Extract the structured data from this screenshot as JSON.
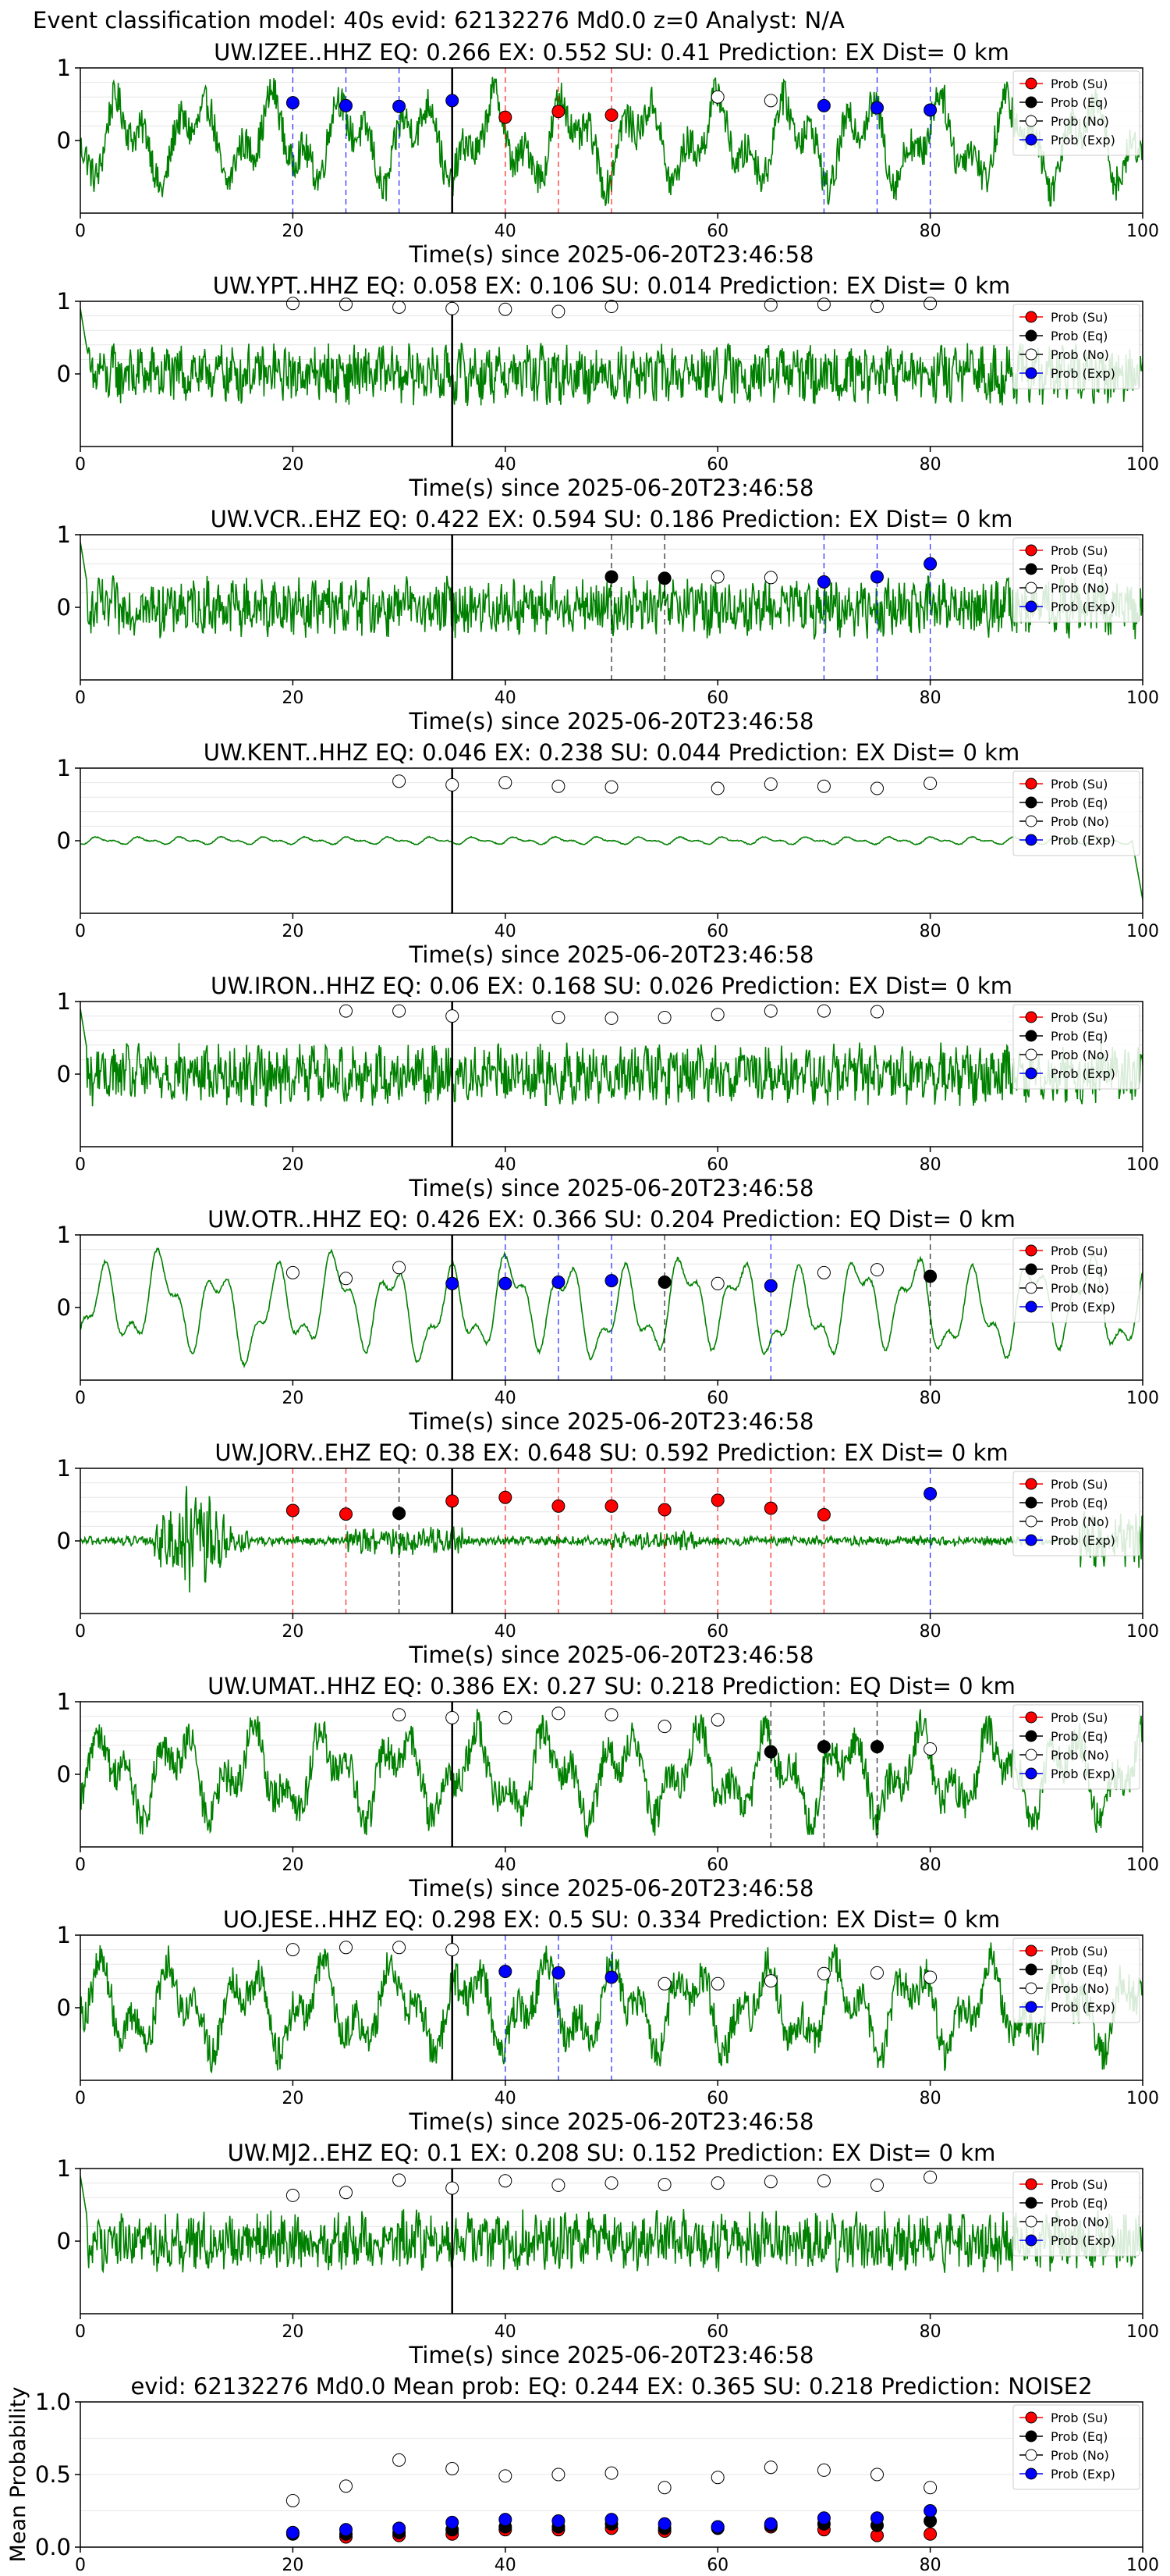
{
  "figure_title": "Event classification model: 40s evid: 62132276 Md0.0 z=0 Analyst: N/A",
  "colors": {
    "waveform": "#008000",
    "su": "#ff0000",
    "eq": "#000000",
    "no": "#ffffff",
    "exp": "#0000ff",
    "pick_line": "#000000"
  },
  "legend_entries": [
    "Prob (Su)",
    "Prob (Eq)",
    "Prob (No)",
    "Prob (Exp)"
  ],
  "chart_data": [
    {
      "type": "line",
      "title": "UW.IZEE..HHZ   EQ: 0.266  EX: 0.552  SU: 0.41   Prediction: EX    Dist= 0 km",
      "xlabel": "Time(s) since 2025-06-20T23:46:58",
      "xlim": [
        0,
        100
      ],
      "ylim": [
        -1,
        1
      ],
      "xticks": [
        0,
        20,
        40,
        60,
        80,
        100
      ],
      "yticks": [
        1,
        0
      ],
      "pick_time": 35,
      "waveform_style": "mixed",
      "legend": "top-right",
      "grid": "y",
      "points": [
        {
          "t": 20,
          "p": 0.52,
          "c": "exp"
        },
        {
          "t": 25,
          "p": 0.48,
          "c": "exp"
        },
        {
          "t": 30,
          "p": 0.47,
          "c": "exp"
        },
        {
          "t": 35,
          "p": 0.55,
          "c": "exp"
        },
        {
          "t": 40,
          "p": 0.32,
          "c": "su"
        },
        {
          "t": 45,
          "p": 0.4,
          "c": "su"
        },
        {
          "t": 50,
          "p": 0.35,
          "c": "su"
        },
        {
          "t": 60,
          "p": 0.6,
          "c": "no"
        },
        {
          "t": 65,
          "p": 0.55,
          "c": "no"
        },
        {
          "t": 70,
          "p": 0.48,
          "c": "exp"
        },
        {
          "t": 75,
          "p": 0.45,
          "c": "exp"
        },
        {
          "t": 80,
          "p": 0.42,
          "c": "exp"
        }
      ]
    },
    {
      "type": "line",
      "title": "UW.YPT..HHZ   EQ: 0.058  EX: 0.106  SU: 0.014   Prediction: EX    Dist= 0 km",
      "xlabel": "Time(s) since 2025-06-20T23:46:58",
      "xlim": [
        0,
        100
      ],
      "ylim": [
        -1,
        1
      ],
      "xticks": [
        0,
        20,
        40,
        60,
        80,
        100
      ],
      "yticks": [
        1,
        0
      ],
      "pick_time": 35,
      "waveform_style": "noisy",
      "legend": "top-right",
      "grid": "y",
      "points": [
        {
          "t": 20,
          "p": 0.97,
          "c": "no"
        },
        {
          "t": 25,
          "p": 0.96,
          "c": "no"
        },
        {
          "t": 30,
          "p": 0.92,
          "c": "no"
        },
        {
          "t": 35,
          "p": 0.9,
          "c": "no"
        },
        {
          "t": 40,
          "p": 0.89,
          "c": "no"
        },
        {
          "t": 45,
          "p": 0.86,
          "c": "no"
        },
        {
          "t": 50,
          "p": 0.93,
          "c": "no"
        },
        {
          "t": 65,
          "p": 0.95,
          "c": "no"
        },
        {
          "t": 70,
          "p": 0.96,
          "c": "no"
        },
        {
          "t": 75,
          "p": 0.93,
          "c": "no"
        },
        {
          "t": 80,
          "p": 0.97,
          "c": "no"
        }
      ]
    },
    {
      "type": "line",
      "title": "UW.VCR..EHZ   EQ: 0.422  EX: 0.594  SU: 0.186   Prediction: EX    Dist= 0 km",
      "xlabel": "Time(s) since 2025-06-20T23:46:58",
      "xlim": [
        0,
        100
      ],
      "ylim": [
        -1,
        1
      ],
      "xticks": [
        0,
        20,
        40,
        60,
        80,
        100
      ],
      "yticks": [
        1,
        0
      ],
      "pick_time": 35,
      "waveform_style": "noisy",
      "legend": "top-right",
      "grid": "y",
      "points": [
        {
          "t": 50,
          "p": 0.42,
          "c": "eq"
        },
        {
          "t": 55,
          "p": 0.4,
          "c": "eq"
        },
        {
          "t": 60,
          "p": 0.42,
          "c": "no"
        },
        {
          "t": 65,
          "p": 0.41,
          "c": "no"
        },
        {
          "t": 70,
          "p": 0.35,
          "c": "exp"
        },
        {
          "t": 75,
          "p": 0.42,
          "c": "exp"
        },
        {
          "t": 80,
          "p": 0.6,
          "c": "exp"
        }
      ]
    },
    {
      "type": "line",
      "title": "UW.KENT..HHZ   EQ: 0.046  EX: 0.238  SU: 0.044   Prediction: EX    Dist= 0 km",
      "xlabel": "Time(s) since 2025-06-20T23:46:58",
      "xlim": [
        0,
        100
      ],
      "ylim": [
        -1,
        1
      ],
      "xticks": [
        0,
        20,
        40,
        60,
        80,
        100
      ],
      "yticks": [
        1,
        0
      ],
      "pick_time": 35,
      "waveform_style": "quiet",
      "legend": "top-right",
      "grid": "y",
      "points": [
        {
          "t": 30,
          "p": 0.82,
          "c": "no"
        },
        {
          "t": 35,
          "p": 0.77,
          "c": "no"
        },
        {
          "t": 40,
          "p": 0.8,
          "c": "no"
        },
        {
          "t": 45,
          "p": 0.75,
          "c": "no"
        },
        {
          "t": 50,
          "p": 0.74,
          "c": "no"
        },
        {
          "t": 60,
          "p": 0.72,
          "c": "no"
        },
        {
          "t": 65,
          "p": 0.78,
          "c": "no"
        },
        {
          "t": 70,
          "p": 0.75,
          "c": "no"
        },
        {
          "t": 75,
          "p": 0.72,
          "c": "no"
        },
        {
          "t": 80,
          "p": 0.79,
          "c": "no"
        }
      ]
    },
    {
      "type": "line",
      "title": "UW.IRON..HHZ   EQ: 0.06  EX: 0.168  SU: 0.026   Prediction: EX    Dist= 0 km",
      "xlabel": "Time(s) since 2025-06-20T23:46:58",
      "xlim": [
        0,
        100
      ],
      "ylim": [
        -1,
        1
      ],
      "xticks": [
        0,
        20,
        40,
        60,
        80,
        100
      ],
      "yticks": [
        1,
        0
      ],
      "pick_time": 35,
      "waveform_style": "noisy",
      "legend": "top-right",
      "grid": "y",
      "points": [
        {
          "t": 25,
          "p": 0.87,
          "c": "no"
        },
        {
          "t": 30,
          "p": 0.87,
          "c": "no"
        },
        {
          "t": 35,
          "p": 0.8,
          "c": "no"
        },
        {
          "t": 45,
          "p": 0.78,
          "c": "no"
        },
        {
          "t": 50,
          "p": 0.77,
          "c": "no"
        },
        {
          "t": 55,
          "p": 0.78,
          "c": "no"
        },
        {
          "t": 60,
          "p": 0.82,
          "c": "no"
        },
        {
          "t": 65,
          "p": 0.87,
          "c": "no"
        },
        {
          "t": 70,
          "p": 0.87,
          "c": "no"
        },
        {
          "t": 75,
          "p": 0.86,
          "c": "no"
        }
      ]
    },
    {
      "type": "line",
      "title": "UW.OTR..HHZ   EQ: 0.426  EX: 0.366  SU: 0.204   Prediction: EQ    Dist= 0 km",
      "xlabel": "Time(s) since 2025-06-20T23:46:58",
      "xlim": [
        0,
        100
      ],
      "ylim": [
        -1,
        1
      ],
      "xticks": [
        0,
        20,
        40,
        60,
        80,
        100
      ],
      "yticks": [
        1,
        0
      ],
      "pick_time": 35,
      "waveform_style": "smooth",
      "legend": "top-right",
      "grid": "y",
      "points": [
        {
          "t": 20,
          "p": 0.48,
          "c": "no"
        },
        {
          "t": 25,
          "p": 0.4,
          "c": "no"
        },
        {
          "t": 30,
          "p": 0.55,
          "c": "no"
        },
        {
          "t": 35,
          "p": 0.33,
          "c": "exp"
        },
        {
          "t": 40,
          "p": 0.33,
          "c": "exp"
        },
        {
          "t": 45,
          "p": 0.35,
          "c": "exp"
        },
        {
          "t": 50,
          "p": 0.37,
          "c": "exp"
        },
        {
          "t": 55,
          "p": 0.35,
          "c": "eq"
        },
        {
          "t": 60,
          "p": 0.33,
          "c": "no"
        },
        {
          "t": 65,
          "p": 0.3,
          "c": "exp"
        },
        {
          "t": 70,
          "p": 0.48,
          "c": "no"
        },
        {
          "t": 75,
          "p": 0.52,
          "c": "no"
        },
        {
          "t": 80,
          "p": 0.43,
          "c": "eq"
        }
      ]
    },
    {
      "type": "line",
      "title": "UW.JORV..EHZ   EQ: 0.38  EX: 0.648  SU: 0.592   Prediction: EX    Dist= 0 km",
      "xlabel": "Time(s) since 2025-06-20T23:46:58",
      "xlim": [
        0,
        100
      ],
      "ylim": [
        -1,
        1
      ],
      "xticks": [
        0,
        20,
        40,
        60,
        80,
        100
      ],
      "yticks": [
        1,
        0
      ],
      "pick_time": 35,
      "waveform_style": "burst",
      "legend": "top-right",
      "grid": "y",
      "points": [
        {
          "t": 20,
          "p": 0.42,
          "c": "su"
        },
        {
          "t": 25,
          "p": 0.37,
          "c": "su"
        },
        {
          "t": 30,
          "p": 0.38,
          "c": "eq"
        },
        {
          "t": 35,
          "p": 0.55,
          "c": "su"
        },
        {
          "t": 40,
          "p": 0.6,
          "c": "su"
        },
        {
          "t": 45,
          "p": 0.48,
          "c": "su"
        },
        {
          "t": 50,
          "p": 0.48,
          "c": "su"
        },
        {
          "t": 55,
          "p": 0.43,
          "c": "su"
        },
        {
          "t": 60,
          "p": 0.56,
          "c": "su"
        },
        {
          "t": 65,
          "p": 0.45,
          "c": "su"
        },
        {
          "t": 70,
          "p": 0.36,
          "c": "su"
        },
        {
          "t": 80,
          "p": 0.65,
          "c": "exp"
        }
      ]
    },
    {
      "type": "line",
      "title": "UW.UMAT..HHZ   EQ: 0.386  EX: 0.27  SU: 0.218   Prediction: EQ    Dist= 0 km",
      "xlabel": "Time(s) since 2025-06-20T23:46:58",
      "xlim": [
        0,
        100
      ],
      "ylim": [
        -1,
        1
      ],
      "xticks": [
        0,
        20,
        40,
        60,
        80,
        100
      ],
      "yticks": [
        1,
        0
      ],
      "pick_time": 35,
      "waveform_style": "mixed",
      "legend": "top-right",
      "grid": "y",
      "points": [
        {
          "t": 30,
          "p": 0.82,
          "c": "no"
        },
        {
          "t": 35,
          "p": 0.78,
          "c": "no"
        },
        {
          "t": 40,
          "p": 0.78,
          "c": "no"
        },
        {
          "t": 45,
          "p": 0.84,
          "c": "no"
        },
        {
          "t": 50,
          "p": 0.82,
          "c": "no"
        },
        {
          "t": 55,
          "p": 0.66,
          "c": "no"
        },
        {
          "t": 60,
          "p": 0.75,
          "c": "no"
        },
        {
          "t": 65,
          "p": 0.31,
          "c": "eq"
        },
        {
          "t": 70,
          "p": 0.38,
          "c": "eq"
        },
        {
          "t": 75,
          "p": 0.38,
          "c": "eq"
        },
        {
          "t": 80,
          "p": 0.35,
          "c": "no"
        }
      ]
    },
    {
      "type": "line",
      "title": "UO.JESE..HHZ   EQ: 0.298  EX: 0.5  SU: 0.334   Prediction: EX    Dist= 0 km",
      "xlabel": "Time(s) since 2025-06-20T23:46:58",
      "xlim": [
        0,
        100
      ],
      "ylim": [
        -1,
        1
      ],
      "xticks": [
        0,
        20,
        40,
        60,
        80,
        100
      ],
      "yticks": [
        1,
        0
      ],
      "pick_time": 35,
      "waveform_style": "mixed",
      "legend": "top-right",
      "grid": "y",
      "points": [
        {
          "t": 20,
          "p": 0.8,
          "c": "no"
        },
        {
          "t": 25,
          "p": 0.83,
          "c": "no"
        },
        {
          "t": 30,
          "p": 0.83,
          "c": "no"
        },
        {
          "t": 35,
          "p": 0.8,
          "c": "no"
        },
        {
          "t": 40,
          "p": 0.5,
          "c": "exp"
        },
        {
          "t": 45,
          "p": 0.48,
          "c": "exp"
        },
        {
          "t": 50,
          "p": 0.42,
          "c": "exp"
        },
        {
          "t": 55,
          "p": 0.33,
          "c": "no"
        },
        {
          "t": 60,
          "p": 0.33,
          "c": "no"
        },
        {
          "t": 65,
          "p": 0.37,
          "c": "no"
        },
        {
          "t": 70,
          "p": 0.47,
          "c": "no"
        },
        {
          "t": 75,
          "p": 0.48,
          "c": "no"
        },
        {
          "t": 80,
          "p": 0.42,
          "c": "no"
        }
      ]
    },
    {
      "type": "line",
      "title": "UW.MJ2..EHZ   EQ: 0.1  EX: 0.208  SU: 0.152   Prediction: EX    Dist= 0 km",
      "xlabel": "Time(s) since 2025-06-20T23:46:58",
      "xlim": [
        0,
        100
      ],
      "ylim": [
        -1,
        1
      ],
      "xticks": [
        0,
        20,
        40,
        60,
        80,
        100
      ],
      "yticks": [
        1,
        0
      ],
      "pick_time": 35,
      "waveform_style": "noisy",
      "legend": "top-right",
      "grid": "y",
      "points": [
        {
          "t": 20,
          "p": 0.63,
          "c": "no"
        },
        {
          "t": 25,
          "p": 0.67,
          "c": "no"
        },
        {
          "t": 30,
          "p": 0.84,
          "c": "no"
        },
        {
          "t": 35,
          "p": 0.73,
          "c": "no"
        },
        {
          "t": 40,
          "p": 0.83,
          "c": "no"
        },
        {
          "t": 45,
          "p": 0.77,
          "c": "no"
        },
        {
          "t": 50,
          "p": 0.8,
          "c": "no"
        },
        {
          "t": 55,
          "p": 0.78,
          "c": "no"
        },
        {
          "t": 60,
          "p": 0.8,
          "c": "no"
        },
        {
          "t": 65,
          "p": 0.82,
          "c": "no"
        },
        {
          "t": 70,
          "p": 0.83,
          "c": "no"
        },
        {
          "t": 75,
          "p": 0.77,
          "c": "no"
        },
        {
          "t": 80,
          "p": 0.88,
          "c": "no"
        }
      ]
    },
    {
      "type": "scatter",
      "title": "evid: 62132276  Md0.0   Mean prob:   EQ: 0.244  EX: 0.365  SU: 0.218   Prediction: NOISE2",
      "ylabel": "Mean Probability",
      "xlim": [
        0,
        100
      ],
      "ylim": [
        0,
        1
      ],
      "xticks": [
        0,
        20,
        40,
        60,
        80,
        100
      ],
      "yticks": [
        1.0,
        0.5,
        0.0
      ],
      "legend": "top-right",
      "grid": "y",
      "x": [
        20,
        25,
        30,
        35,
        40,
        45,
        50,
        55,
        60,
        65,
        70,
        75,
        80
      ],
      "series": [
        {
          "name": "Prob (Su)",
          "c": "su",
          "values": [
            0.1,
            0.07,
            0.08,
            0.09,
            0.12,
            0.12,
            0.13,
            0.11,
            0.14,
            0.14,
            0.12,
            0.08,
            0.09
          ]
        },
        {
          "name": "Prob (Eq)",
          "c": "eq",
          "values": [
            0.09,
            0.09,
            0.1,
            0.12,
            0.14,
            0.14,
            0.16,
            0.13,
            0.13,
            0.15,
            0.16,
            0.15,
            0.18
          ]
        },
        {
          "name": "Prob (No)",
          "c": "no",
          "values": [
            0.32,
            0.42,
            0.6,
            0.54,
            0.49,
            0.5,
            0.51,
            0.41,
            0.48,
            0.55,
            0.53,
            0.5,
            0.41
          ]
        },
        {
          "name": "Prob (Exp)",
          "c": "exp",
          "values": [
            0.1,
            0.12,
            0.13,
            0.17,
            0.19,
            0.18,
            0.19,
            0.16,
            0.14,
            0.16,
            0.2,
            0.2,
            0.25
          ]
        }
      ]
    }
  ]
}
